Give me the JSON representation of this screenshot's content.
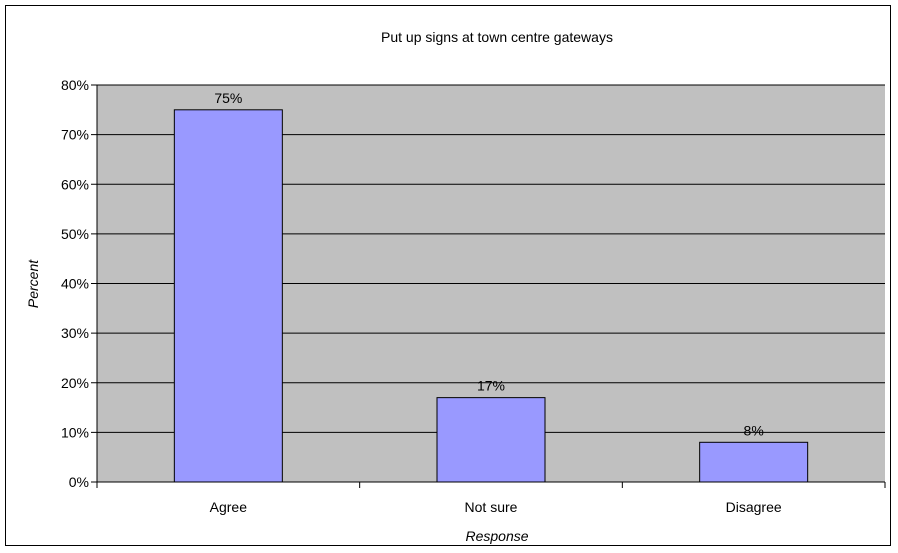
{
  "chart_data": {
    "type": "bar",
    "title": "Put up signs at town centre gateways",
    "xlabel": "Response",
    "ylabel": "Percent",
    "categories": [
      "Agree",
      "Not sure",
      "Disagree"
    ],
    "values": [
      75,
      17,
      8
    ],
    "data_labels": [
      "75%",
      "17%",
      "8%"
    ],
    "ylim": [
      0,
      80
    ],
    "yticks": [
      0,
      10,
      20,
      30,
      40,
      50,
      60,
      70,
      80
    ],
    "ytick_labels": [
      "0%",
      "10%",
      "20%",
      "30%",
      "40%",
      "50%",
      "60%",
      "70%",
      "80%"
    ],
    "grid": true,
    "legend": "none",
    "colors": {
      "plot_background": "#c0c0c0",
      "bar_fill": "#9999ff",
      "bar_stroke": "#000000",
      "gridline": "#000000"
    }
  }
}
